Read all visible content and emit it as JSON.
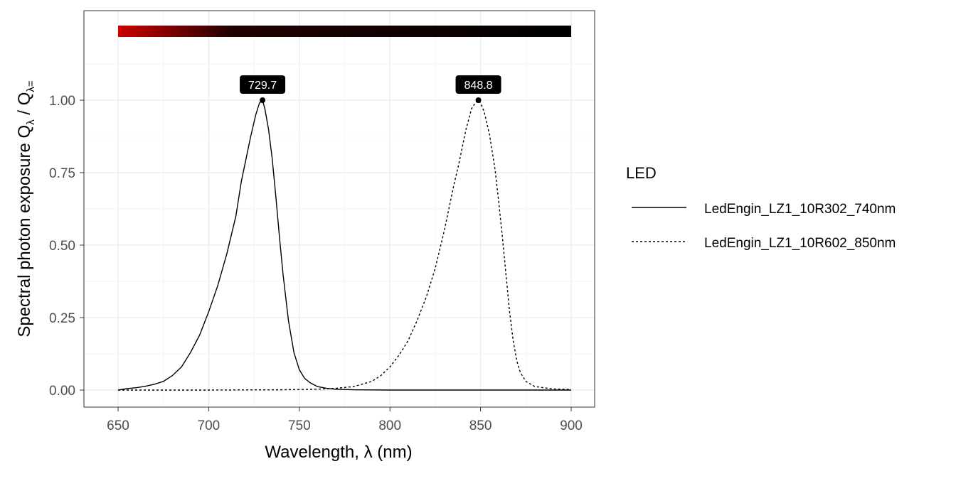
{
  "chart_data": {
    "type": "line",
    "title": "",
    "xlabel": "Wavelength, λ (nm)",
    "ylabel": "Spectral photon exposure Qλ / Qλ=",
    "ylabel_parts": {
      "main": "Spectral  photon  exposure  Q",
      "sub1": "λ",
      "slash": " / Q",
      "sub2": "λ="
    },
    "xlim": [
      631,
      913
    ],
    "ylim": [
      -0.06,
      1.3
    ],
    "xticks": [
      650,
      700,
      750,
      800,
      850,
      900
    ],
    "xtick_labels": [
      "650",
      "700",
      "750",
      "800",
      "850",
      "900"
    ],
    "yticks": [
      0,
      0.25,
      0.5,
      0.75,
      1.0
    ],
    "ytick_labels": [
      "0.00",
      "0.25",
      "0.50",
      "0.75",
      "1.00"
    ],
    "grid": true,
    "color_bar": {
      "range": [
        650,
        900
      ],
      "start_color": "#cc0000",
      "end_color": "#000000"
    },
    "legend": {
      "title": "LED",
      "placement": "right"
    },
    "series": [
      {
        "name": "LedEngin_LZ1_10R302_740nm",
        "linetype": "solid",
        "peak": {
          "x": 729.7,
          "label": "729.7"
        },
        "x": [
          650,
          655,
          660,
          665,
          670,
          675,
          680,
          685,
          690,
          695,
          700,
          705,
          710,
          715,
          718,
          720,
          723,
          726,
          728,
          729.7,
          731,
          733,
          735,
          737,
          739,
          741,
          744,
          747,
          750,
          753,
          756,
          760,
          765,
          770,
          780,
          800,
          850,
          900
        ],
        "y": [
          0,
          0.005,
          0.008,
          0.013,
          0.02,
          0.03,
          0.05,
          0.08,
          0.13,
          0.19,
          0.27,
          0.36,
          0.47,
          0.6,
          0.72,
          0.78,
          0.87,
          0.95,
          0.99,
          1.0,
          0.97,
          0.9,
          0.8,
          0.67,
          0.53,
          0.4,
          0.24,
          0.13,
          0.07,
          0.04,
          0.025,
          0.012,
          0.006,
          0.003,
          0.001,
          0,
          0,
          0
        ]
      },
      {
        "name": "LedEngin_LZ1_10R602_850nm",
        "linetype": "dotted",
        "peak": {
          "x": 848.8,
          "label": "848.8"
        },
        "x": [
          650,
          700,
          740,
          760,
          770,
          780,
          790,
          795,
          800,
          805,
          810,
          815,
          820,
          825,
          830,
          835,
          838,
          842,
          845,
          847,
          848.8,
          850,
          852,
          855,
          858,
          860,
          862,
          864,
          866,
          868,
          870,
          872,
          875,
          880,
          890,
          900
        ],
        "y": [
          0,
          0,
          0.001,
          0.003,
          0.006,
          0.012,
          0.03,
          0.05,
          0.08,
          0.12,
          0.17,
          0.24,
          0.32,
          0.42,
          0.55,
          0.7,
          0.78,
          0.9,
          0.97,
          0.99,
          1.0,
          0.99,
          0.96,
          0.88,
          0.76,
          0.65,
          0.53,
          0.4,
          0.27,
          0.17,
          0.1,
          0.06,
          0.03,
          0.012,
          0.004,
          0.002
        ]
      }
    ]
  }
}
